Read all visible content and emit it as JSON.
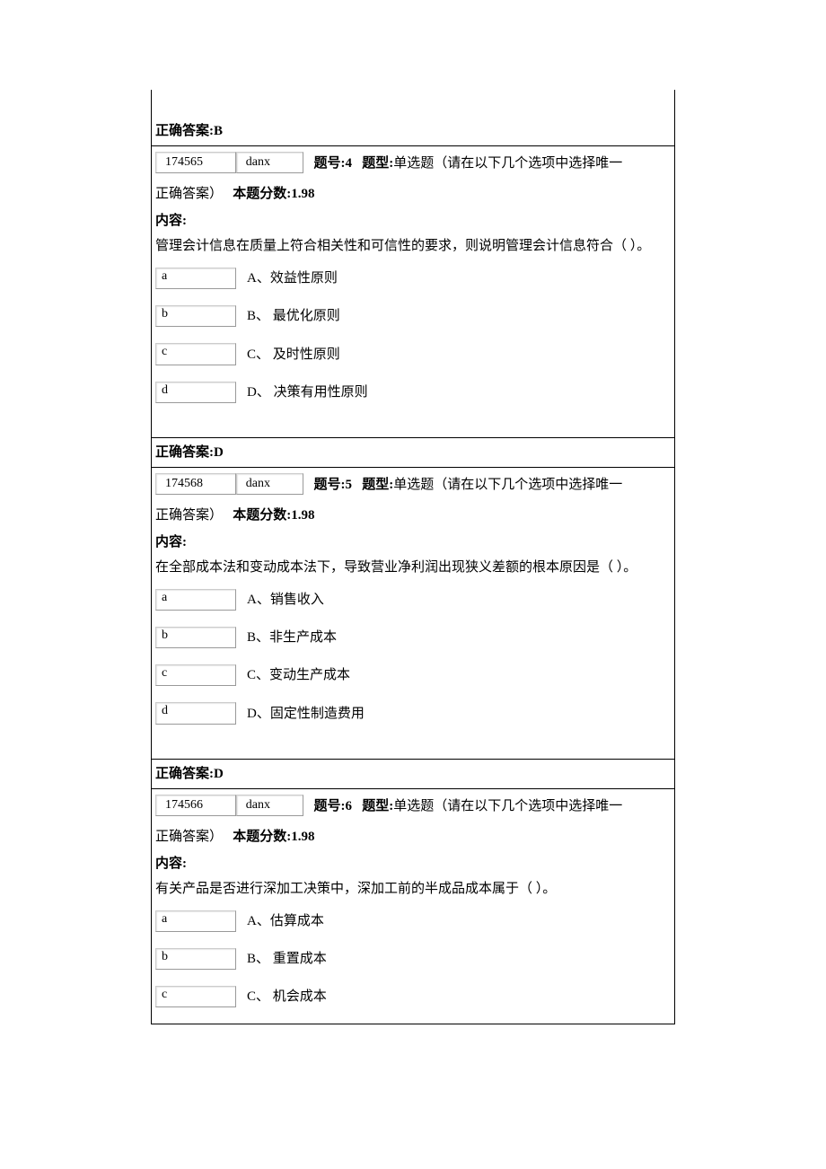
{
  "labels": {
    "q_no": "题号",
    "q_type": "题型",
    "type_desc": "单选题（请在以下几个选项中选择唯一",
    "cont_answer": "正确答案）",
    "score_label": "本题分数",
    "content_label": "内容:",
    "answer_label": "正确答案"
  },
  "prev_answer": "B",
  "questions": [
    {
      "id": "174565",
      "type_code": "danx",
      "number": "4",
      "score": "1.98",
      "content": "管理会计信息在质量上符合相关性和可信性的要求，则说明管理会计信息符合（  ）。",
      "options": [
        {
          "key": "a",
          "letter": "A",
          "text": "、效益性原则"
        },
        {
          "key": "b",
          "letter": "B",
          "text": "、  最优化原则"
        },
        {
          "key": "c",
          "letter": "C",
          "text": "、  及时性原则"
        },
        {
          "key": "d",
          "letter": "D",
          "text": "、  决策有用性原则"
        }
      ],
      "answer": "D"
    },
    {
      "id": "174568",
      "type_code": "danx",
      "number": "5",
      "score": "1.98",
      "content": "在全部成本法和变动成本法下，导致营业净利润出现狭义差额的根本原因是（  ）。",
      "options": [
        {
          "key": "a",
          "letter": "A",
          "text": "、销售收入"
        },
        {
          "key": "b",
          "letter": "B",
          "text": "、非生产成本"
        },
        {
          "key": "c",
          "letter": "C",
          "text": "、变动生产成本"
        },
        {
          "key": "d",
          "letter": "D",
          "text": "、固定性制造费用"
        }
      ],
      "answer": "D"
    },
    {
      "id": "174566",
      "type_code": "danx",
      "number": "6",
      "score": "1.98",
      "content": "有关产品是否进行深加工决策中，深加工前的半成品成本属于（  ）。",
      "options": [
        {
          "key": "a",
          "letter": "A",
          "text": "、估算成本"
        },
        {
          "key": "b",
          "letter": "B",
          "text": "、  重置成本"
        },
        {
          "key": "c",
          "letter": "C",
          "text": "、  机会成本"
        }
      ],
      "answer": ""
    }
  ]
}
